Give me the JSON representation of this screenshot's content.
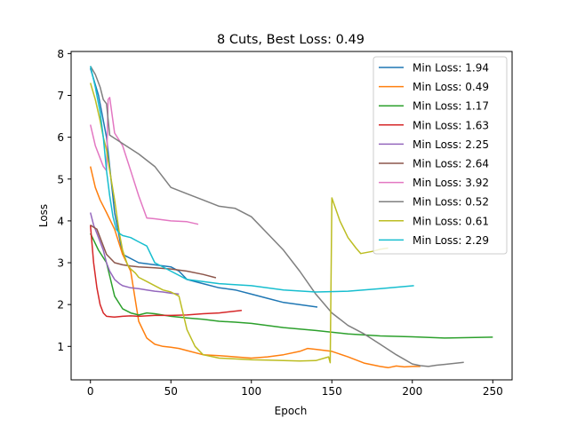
{
  "chart_data": {
    "type": "line",
    "title": "8 Cuts, Best Loss: 0.49",
    "xlabel": "Epoch",
    "ylabel": "Loss",
    "xlim": [
      -12,
      262
    ],
    "ylim": [
      0.2,
      8.05
    ],
    "xticks": [
      0,
      50,
      100,
      150,
      200,
      250
    ],
    "yticks": [
      1,
      2,
      3,
      4,
      5,
      6,
      7,
      8
    ],
    "grid": false,
    "legend_position": "top-right",
    "series": [
      {
        "name": "Min Loss: 1.94",
        "color": "#1f77b4",
        "x": [
          0,
          5,
          10,
          15,
          20,
          30,
          40,
          50,
          55,
          60,
          70,
          80,
          90,
          100,
          110,
          120,
          130,
          141
        ],
        "y": [
          7.65,
          7.0,
          6.0,
          4.2,
          3.2,
          3.0,
          2.95,
          2.9,
          2.8,
          2.6,
          2.5,
          2.4,
          2.35,
          2.25,
          2.15,
          2.05,
          2.0,
          1.94
        ]
      },
      {
        "name": "Min Loss: 0.49",
        "color": "#ff7f0e",
        "x": [
          0,
          3,
          6,
          10,
          15,
          20,
          25,
          30,
          35,
          40,
          45,
          50,
          55,
          60,
          70,
          80,
          90,
          100,
          110,
          120,
          130,
          135,
          140,
          150,
          160,
          170,
          180,
          185,
          190,
          195,
          200,
          205
        ],
        "y": [
          5.3,
          4.8,
          4.5,
          4.2,
          3.8,
          3.2,
          2.8,
          1.6,
          1.2,
          1.05,
          1.0,
          0.98,
          0.95,
          0.9,
          0.8,
          0.78,
          0.75,
          0.72,
          0.75,
          0.8,
          0.88,
          0.95,
          0.93,
          0.88,
          0.75,
          0.6,
          0.52,
          0.49,
          0.53,
          0.51,
          0.52,
          0.52
        ]
      },
      {
        "name": "Min Loss: 1.17",
        "color": "#2ca02c",
        "x": [
          0,
          5,
          10,
          15,
          20,
          25,
          30,
          35,
          40,
          50,
          60,
          70,
          80,
          90,
          100,
          120,
          140,
          160,
          180,
          200,
          220,
          250
        ],
        "y": [
          3.7,
          3.3,
          3.0,
          2.2,
          1.9,
          1.8,
          1.75,
          1.8,
          1.78,
          1.72,
          1.68,
          1.65,
          1.6,
          1.58,
          1.55,
          1.45,
          1.38,
          1.3,
          1.25,
          1.23,
          1.2,
          1.22
        ]
      },
      {
        "name": "Min Loss: 1.63",
        "color": "#d62728",
        "x": [
          0,
          2,
          4,
          6,
          8,
          10,
          15,
          20,
          25,
          30,
          40,
          50,
          60,
          70,
          80,
          94
        ],
        "y": [
          3.9,
          3.0,
          2.4,
          2.0,
          1.8,
          1.72,
          1.7,
          1.72,
          1.73,
          1.72,
          1.74,
          1.74,
          1.75,
          1.78,
          1.8,
          1.86
        ]
      },
      {
        "name": "Min Loss: 2.25",
        "color": "#9467bd",
        "x": [
          0,
          2,
          4,
          6,
          8,
          10,
          12,
          15,
          18,
          20,
          25,
          30,
          35,
          40,
          45,
          50,
          55
        ],
        "y": [
          4.2,
          3.9,
          3.7,
          3.5,
          3.3,
          3.0,
          2.8,
          2.6,
          2.5,
          2.45,
          2.4,
          2.38,
          2.35,
          2.32,
          2.3,
          2.27,
          2.25
        ]
      },
      {
        "name": "Min Loss: 2.64",
        "color": "#8c564b",
        "x": [
          0,
          2,
          4,
          6,
          8,
          10,
          15,
          20,
          25,
          30,
          40,
          50,
          60,
          70,
          78
        ],
        "y": [
          3.9,
          3.85,
          3.8,
          3.6,
          3.4,
          3.2,
          3.0,
          2.95,
          2.92,
          2.9,
          2.88,
          2.85,
          2.8,
          2.72,
          2.64
        ]
      },
      {
        "name": "Min Loss: 3.92",
        "color": "#e377c2",
        "x": [
          0,
          3,
          6,
          8,
          10,
          11,
          12,
          15,
          20,
          25,
          30,
          35,
          40,
          50,
          60,
          67
        ],
        "y": [
          6.3,
          5.8,
          5.5,
          5.3,
          5.2,
          6.9,
          6.95,
          6.1,
          5.8,
          5.2,
          4.6,
          4.07,
          4.05,
          4.0,
          3.98,
          3.92
        ]
      },
      {
        "name": "Min Loss: 0.52",
        "color": "#7f7f7f",
        "x": [
          0,
          3,
          6,
          8,
          10,
          12,
          20,
          30,
          40,
          50,
          60,
          70,
          80,
          90,
          100,
          110,
          120,
          130,
          140,
          150,
          160,
          170,
          180,
          190,
          200,
          205,
          210,
          215,
          220,
          232
        ],
        "y": [
          7.7,
          7.5,
          7.2,
          6.9,
          6.8,
          6.05,
          5.85,
          5.6,
          5.3,
          4.8,
          4.65,
          4.5,
          4.35,
          4.3,
          4.1,
          3.7,
          3.3,
          2.8,
          2.25,
          1.8,
          1.5,
          1.3,
          1.05,
          0.8,
          0.58,
          0.54,
          0.52,
          0.55,
          0.57,
          0.62
        ]
      },
      {
        "name": "Min Loss: 0.61",
        "color": "#bcbd22",
        "x": [
          0,
          3,
          6,
          8,
          10,
          12,
          15,
          18,
          20,
          23,
          25,
          28,
          30,
          35,
          40,
          45,
          50,
          55,
          60,
          65,
          70,
          80,
          90,
          100,
          110,
          120,
          130,
          140,
          148,
          149,
          150,
          155,
          160,
          165,
          168,
          175,
          180,
          185
        ],
        "y": [
          7.3,
          6.9,
          6.4,
          6.0,
          5.7,
          5.2,
          4.5,
          3.7,
          3.3,
          2.95,
          2.85,
          2.75,
          2.65,
          2.55,
          2.45,
          2.35,
          2.3,
          2.2,
          1.4,
          1.0,
          0.8,
          0.72,
          0.7,
          0.68,
          0.67,
          0.66,
          0.65,
          0.66,
          0.75,
          0.61,
          4.55,
          4.0,
          3.6,
          3.35,
          3.22,
          3.27,
          3.32,
          3.35
        ]
      },
      {
        "name": "Min Loss: 2.29",
        "color": "#17becf",
        "x": [
          0,
          3,
          6,
          8,
          10,
          12,
          14,
          16,
          18,
          20,
          25,
          30,
          35,
          40,
          50,
          60,
          70,
          80,
          100,
          120,
          140,
          160,
          180,
          201
        ],
        "y": [
          7.7,
          7.2,
          6.6,
          6.0,
          5.2,
          4.6,
          4.1,
          3.8,
          3.7,
          3.65,
          3.6,
          3.5,
          3.4,
          3.0,
          2.8,
          2.6,
          2.55,
          2.5,
          2.45,
          2.35,
          2.3,
          2.32,
          2.38,
          2.45
        ]
      }
    ]
  }
}
